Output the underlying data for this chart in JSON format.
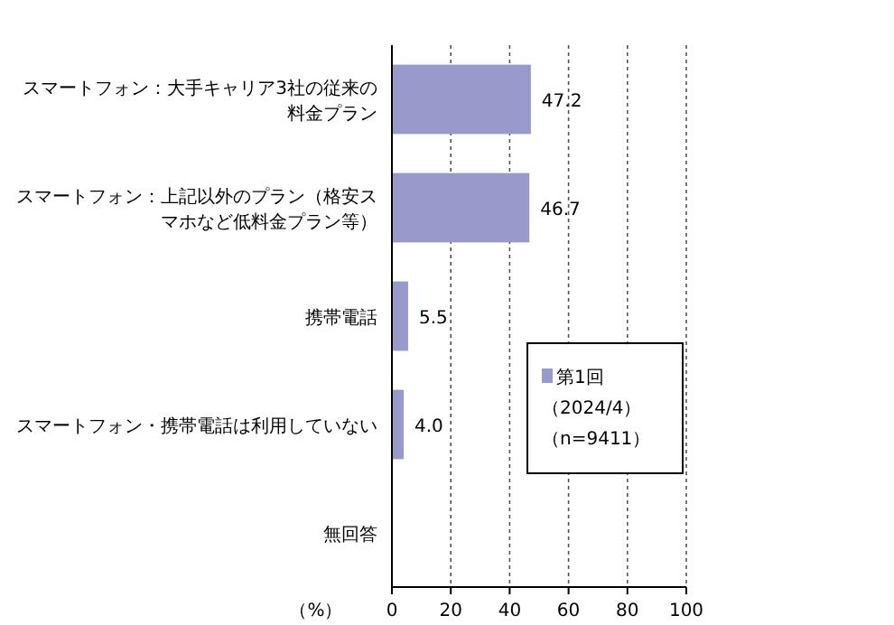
{
  "chart_data": {
    "type": "bar",
    "orientation": "horizontal",
    "categories": [
      "スマートフォン：大手キャリア3社の従来の料金プラン",
      "スマートフォン：上記以外のプラン（格安スマホなど低料金プラン等）",
      "携帯電話",
      "スマートフォン・携帯電話は利用していない",
      "無回答"
    ],
    "series": [
      {
        "name": "第1回（2024/4）（n=9411）",
        "color": "#9999cc",
        "values": [
          47.2,
          46.7,
          5.5,
          4.0,
          null
        ],
        "value_labels": [
          "47.2",
          "46.7",
          "5.5",
          "4.0",
          null
        ]
      }
    ],
    "xlabel": "（%）",
    "xlim": [
      0,
      100
    ],
    "xticks": [
      0,
      20,
      40,
      60,
      80,
      100
    ],
    "grid": "x",
    "legend": "bottom right"
  }
}
